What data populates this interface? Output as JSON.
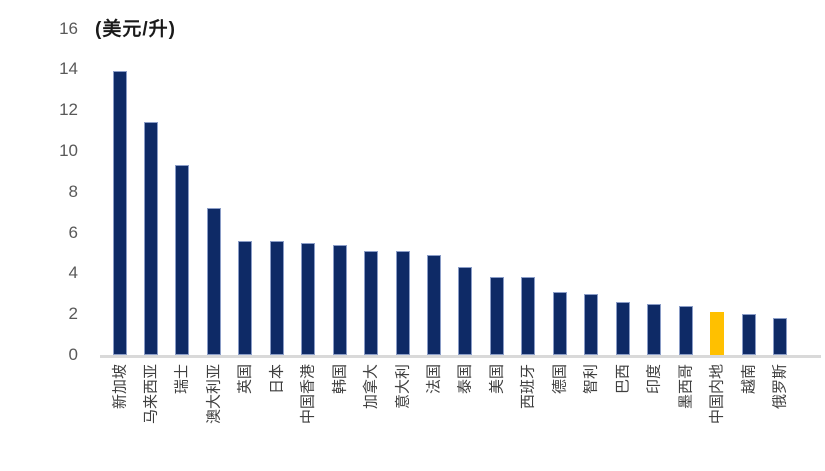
{
  "chart_data": {
    "type": "bar",
    "title": "",
    "unit_label": "(美元/升)",
    "xlabel": "",
    "ylabel": "",
    "ylim": [
      0,
      16
    ],
    "yticks": [
      0,
      2,
      4,
      6,
      8,
      10,
      12,
      14,
      16
    ],
    "grid": false,
    "legend": "none",
    "categories": [
      "新加坡",
      "马来西亚",
      "瑞士",
      "澳大利亚",
      "英国",
      "日本",
      "中国香港",
      "韩国",
      "加拿大",
      "意大利",
      "法国",
      "泰国",
      "美国",
      "西班牙",
      "德国",
      "智利",
      "巴西",
      "印度",
      "墨西哥",
      "中国内地",
      "越南",
      "俄罗斯"
    ],
    "values": [
      13.9,
      11.4,
      9.3,
      7.2,
      5.6,
      5.6,
      5.5,
      5.4,
      5.1,
      5.1,
      4.9,
      4.3,
      3.8,
      3.8,
      3.1,
      3.0,
      2.6,
      2.5,
      2.4,
      2.1,
      2.0,
      1.8
    ],
    "highlight_index": 19,
    "highlight_category": "中国内地",
    "colors": {
      "bar_fill": "#0E2A66",
      "bar_border": "#8B9DC7",
      "highlight_fill": "#FFC000",
      "highlight_border": "#FFC000",
      "axis_line": "#D9D9D9",
      "tick_text": "#595959",
      "label_text": "#3f3f3f"
    }
  }
}
